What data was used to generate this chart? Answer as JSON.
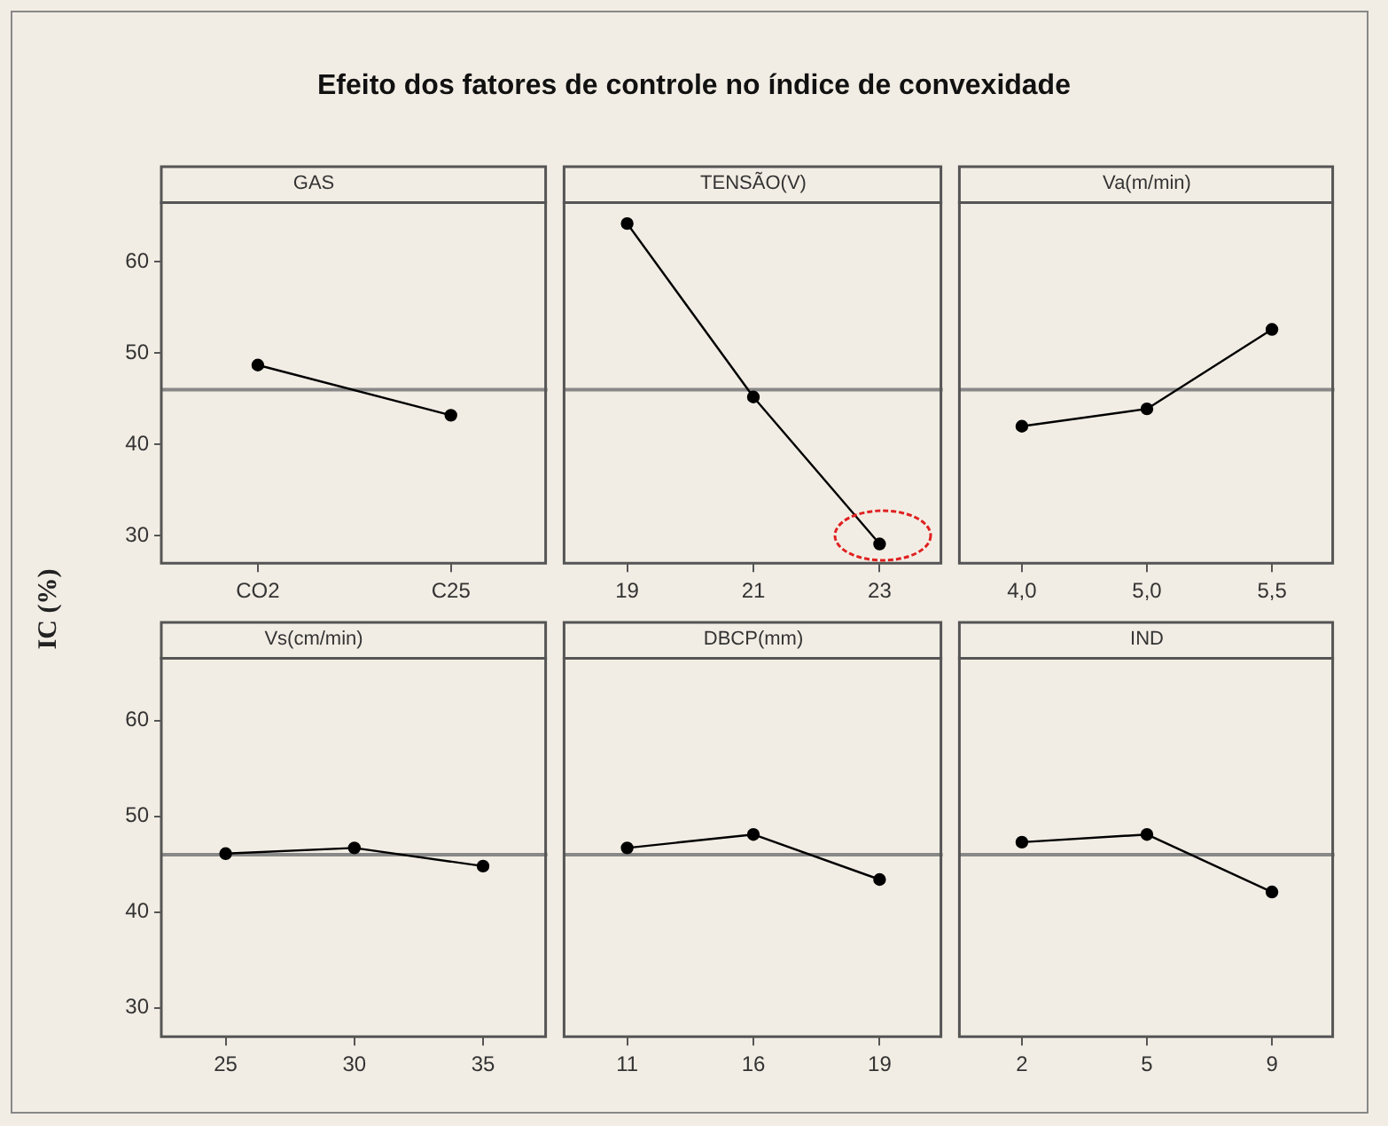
{
  "chart_data": [
    {
      "type": "line",
      "title": "GAS",
      "annotations": [
        "Efeito dos fatores de controle no índice de convexidade"
      ],
      "ylabel": "IC (%)",
      "categories": [
        "CO2",
        "C25"
      ],
      "values": [
        48.7,
        43.2
      ],
      "color": "#000000",
      "marker": "circle",
      "ylim": [
        27,
        66.5
      ],
      "yticks": [
        30,
        40,
        50,
        60
      ],
      "ref_lines": [
        {
          "axis": "y",
          "value": 46,
          "color": "#888888"
        }
      ]
    },
    {
      "type": "line",
      "title": "TENSÃO(V)",
      "categories": [
        "19",
        "21",
        "23"
      ],
      "values": [
        64.2,
        45.2,
        29.1
      ],
      "color": "#000000",
      "marker": "circle",
      "ylim": [
        27,
        66.5
      ],
      "tick_labels": "x",
      "ref_lines": [
        {
          "axis": "y",
          "value": 46,
          "color": "#888888"
        }
      ]
    },
    {
      "type": "line",
      "title": "Va(m/min)",
      "categories": [
        "4,0",
        "5,0",
        "5,5"
      ],
      "values": [
        42.0,
        43.9,
        52.6
      ],
      "color": "#000000",
      "marker": "circle",
      "ylim": [
        27,
        66.5
      ],
      "tick_labels": "x",
      "ref_lines": [
        {
          "axis": "y",
          "value": 46,
          "color": "#888888"
        }
      ]
    },
    {
      "type": "line",
      "title": "Vs(cm/min)",
      "categories": [
        "25",
        "30",
        "35"
      ],
      "values": [
        46.1,
        46.7,
        44.8
      ],
      "color": "#000000",
      "marker": "circle",
      "ylim": [
        27,
        66.5
      ],
      "yticks": [
        30,
        40,
        50,
        60
      ],
      "ref_lines": [
        {
          "axis": "y",
          "value": 46,
          "color": "#888888"
        }
      ]
    },
    {
      "type": "line",
      "title": "DBCP(mm)",
      "categories": [
        "11",
        "16",
        "19"
      ],
      "values": [
        46.7,
        48.1,
        43.4
      ],
      "color": "#000000",
      "marker": "circle",
      "ylim": [
        27,
        66.5
      ],
      "tick_labels": "x",
      "ref_lines": [
        {
          "axis": "y",
          "value": 46,
          "color": "#888888"
        }
      ]
    },
    {
      "type": "line",
      "title": "IND",
      "categories": [
        "2",
        "5",
        "9"
      ],
      "values": [
        47.3,
        48.1,
        42.1
      ],
      "color": "#000000",
      "marker": "circle",
      "ylim": [
        27,
        66.5
      ],
      "tick_labels": "x",
      "ref_lines": [
        {
          "axis": "y",
          "value": 46,
          "color": "#888888"
        }
      ]
    }
  ]
}
